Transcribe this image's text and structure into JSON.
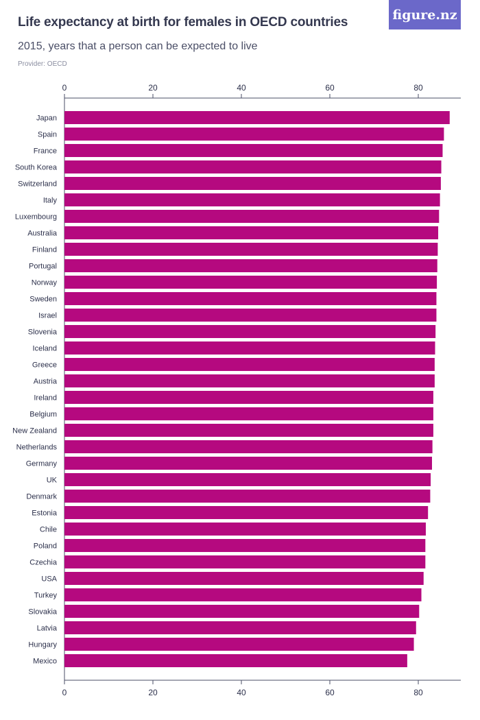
{
  "header": {
    "title": "Life expectancy at birth for females in OECD countries",
    "subtitle": "2015, years that a person can be expected to live",
    "provider": "Provider: OECD",
    "logo": "figure.nz"
  },
  "colors": {
    "bar": "#b5097f",
    "axis": "#4a4e66",
    "text": "#2b2f4a",
    "logo_bg": "#6b68c9"
  },
  "chart_data": {
    "type": "bar",
    "orientation": "horizontal",
    "categories": [
      "Japan",
      "Spain",
      "France",
      "South Korea",
      "Switzerland",
      "Italy",
      "Luxembourg",
      "Australia",
      "Finland",
      "Portugal",
      "Norway",
      "Sweden",
      "Israel",
      "Slovenia",
      "Iceland",
      "Greece",
      "Austria",
      "Ireland",
      "Belgium",
      "New Zealand",
      "Netherlands",
      "Germany",
      "UK",
      "Denmark",
      "Estonia",
      "Chile",
      "Poland",
      "Czechia",
      "USA",
      "Turkey",
      "Slovakia",
      "Latvia",
      "Hungary",
      "Mexico"
    ],
    "values": [
      87.1,
      85.8,
      85.5,
      85.2,
      85.1,
      84.9,
      84.7,
      84.5,
      84.4,
      84.3,
      84.2,
      84.1,
      84.1,
      83.9,
      83.8,
      83.7,
      83.7,
      83.4,
      83.4,
      83.4,
      83.2,
      83.1,
      82.8,
      82.7,
      82.2,
      81.7,
      81.6,
      81.6,
      81.2,
      80.7,
      80.2,
      79.5,
      79.0,
      77.5
    ],
    "xticks": [
      0,
      20,
      40,
      60,
      80
    ],
    "xlim": [
      0,
      90
    ],
    "axis_position": "top-and-bottom",
    "grid": false,
    "title": "Life expectancy at birth for females in OECD countries",
    "xlabel": "",
    "ylabel": ""
  }
}
